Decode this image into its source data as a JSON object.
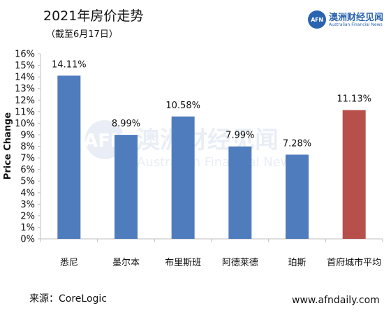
{
  "title": "2021年房价走势",
  "subtitle": "（截至6月17日）",
  "logo": {
    "badge": "AFN",
    "name_cn": "澳洲财经见闻",
    "name_en": "Australian Financial News"
  },
  "watermark": {
    "badge": "AFN",
    "name_cn": "澳洲财经见闻",
    "name_en": "Australian Financial News"
  },
  "source": "来源：CoreLogic",
  "website": "www.afndaily.com",
  "colors": {
    "bar_primary": "#4f7cbd",
    "bar_highlight": "#b7504a",
    "axis": "#bfbfbf",
    "text": "#222222"
  },
  "chart_data": {
    "type": "bar",
    "title": "2021年房价走势",
    "subtitle": "（截至6月17日）",
    "xlabel": "",
    "ylabel": "Price Change",
    "ylim": [
      0,
      16
    ],
    "yticks": [
      "0%",
      "1%",
      "2%",
      "3%",
      "4%",
      "5%",
      "6%",
      "7%",
      "8%",
      "9%",
      "10%",
      "11%",
      "12%",
      "13%",
      "14%",
      "15%",
      "16%"
    ],
    "grid": false,
    "categories": [
      "悉尼",
      "墨尔本",
      "布里斯班",
      "阿德莱德",
      "珀斯",
      "首府城市平均"
    ],
    "values": [
      14.11,
      8.99,
      10.58,
      7.99,
      7.28,
      11.13
    ],
    "data_labels": [
      "14.11%",
      "8.99%",
      "10.58%",
      "7.99%",
      "7.28%",
      "11.13%"
    ],
    "bar_colors": [
      "#4f7cbd",
      "#4f7cbd",
      "#4f7cbd",
      "#4f7cbd",
      "#4f7cbd",
      "#b7504a"
    ]
  }
}
